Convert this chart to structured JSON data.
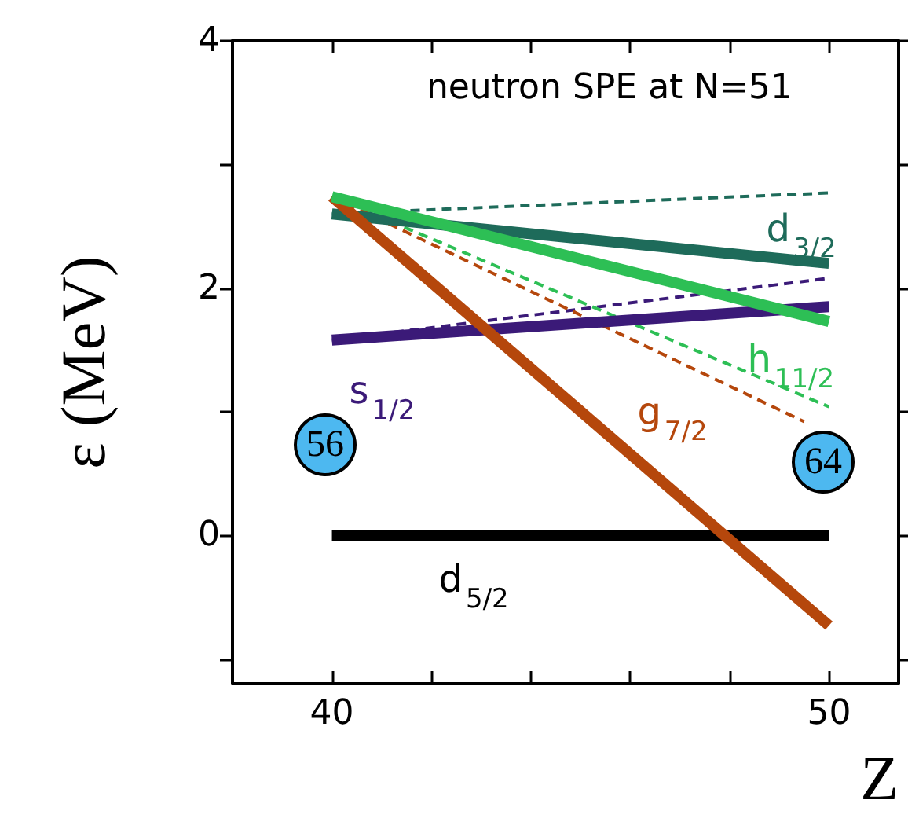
{
  "chart_data": {
    "type": "line",
    "title": "neutron SPE at N=51",
    "xlabel": "Z",
    "ylabel": "ε (MeV)",
    "xlim": [
      38,
      51.4
    ],
    "xticks": [
      40,
      {
        "value": 42,
        "label": null
      },
      {
        "value": 44,
        "label": null
      },
      {
        "value": 46,
        "label": null
      },
      {
        "value": 48,
        "label": null
      },
      50
    ],
    "ylim": [
      -1.2,
      4
    ],
    "yticks": [
      {
        "value": -1,
        "label": null
      },
      0,
      {
        "value": 1,
        "label": null
      },
      2,
      {
        "value": 3,
        "label": null
      },
      4
    ],
    "grid": false,
    "legend": false,
    "marker": "none",
    "series": [
      {
        "name": "d$_{5/2}$",
        "color": "#000000",
        "line_style": "solid",
        "x": [
          40,
          50
        ],
        "values": [
          0,
          0
        ]
      },
      {
        "color": "#1e6b5a",
        "line_style": "dashed",
        "x": [
          40,
          50
        ],
        "values": [
          2.6,
          2.77
        ]
      },
      {
        "color": "#3b1a78",
        "line_style": "dashed",
        "x": [
          40,
          50
        ],
        "values": [
          1.58,
          2.08
        ]
      },
      {
        "color": "#2dbf55",
        "line_style": "dashed",
        "x": [
          40,
          50
        ],
        "values": [
          2.74,
          1.04
        ]
      },
      {
        "color": "#b5470c",
        "line_style": "dashed",
        "x": [
          40,
          49.5
        ],
        "values": [
          2.74,
          0.92
        ]
      },
      {
        "name": "d$_{3/2}$",
        "color": "#1e6b5a",
        "line_style": "solid",
        "x": [
          40,
          50
        ],
        "values": [
          2.6,
          2.2
        ]
      },
      {
        "name": "s$_{1/2}$",
        "color": "#3b1a78",
        "line_style": "solid",
        "x": [
          40,
          50
        ],
        "values": [
          1.58,
          1.85
        ]
      },
      {
        "name": "g$_{7/2}$",
        "color": "#b5470c",
        "line_style": "solid",
        "x": [
          40,
          50
        ],
        "values": [
          2.74,
          -0.73
        ]
      },
      {
        "name": "h$_{11/2}$",
        "color": "#2dbf55",
        "line_style": "solid",
        "x": [
          40,
          50
        ],
        "values": [
          2.74,
          1.73
        ]
      }
    ],
    "annotations": [
      "56",
      "64"
    ]
  }
}
